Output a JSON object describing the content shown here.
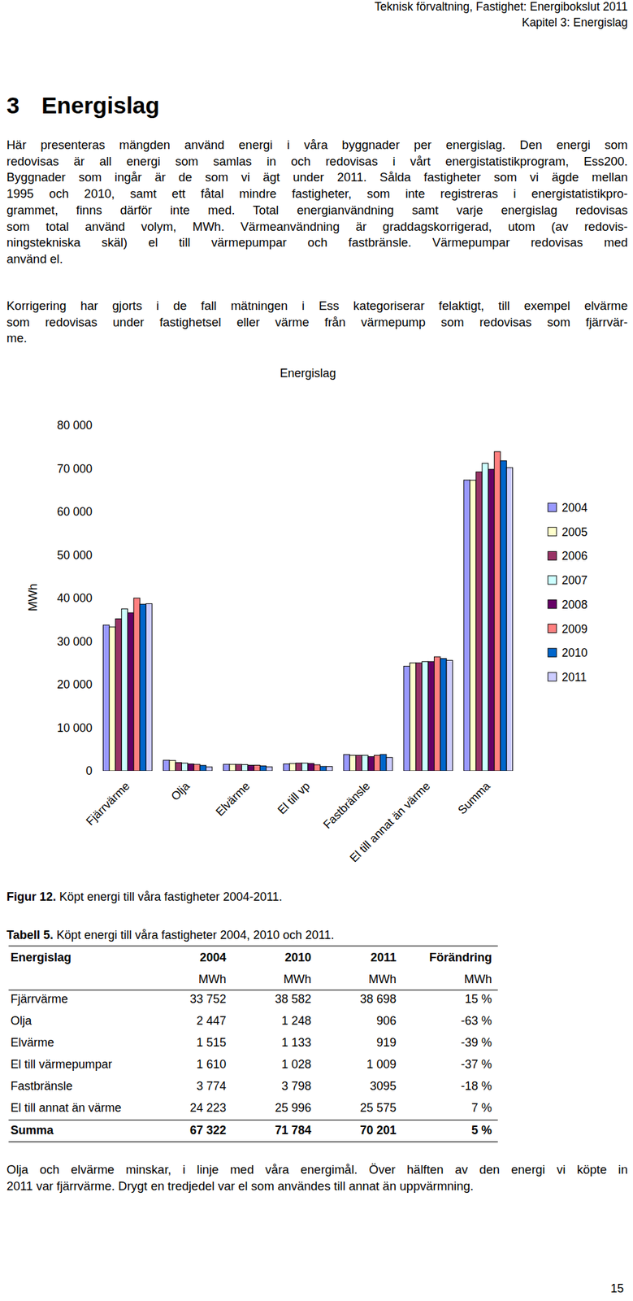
{
  "header": {
    "lines": [
      "Teknisk förvaltning, Fastighet: Energibokslut 2011",
      "Kapitel 3: Energislag"
    ]
  },
  "heading": {
    "number": "3",
    "title": "Energislag"
  },
  "paragraphs": [
    [
      "Här presenteras mängden använd energi i våra byggnader per energislag. Den energi som",
      "redovisas är all energi som samlas in och redovisas i vårt energistatistikprogram, Ess200.",
      "Byggnader som ingår är de som vi ägt under 2011. Sålda fastigheter som vi ägde mellan",
      "1995 och 2010, samt ett fåtal mindre fastigheter, som inte registreras i energistatistikpro-",
      "grammet, finns därför inte med. Total energianvändning samt varje energislag redovisas",
      "som total använd volym, MWh. Värmeanvändning är graddagskorrigerad, utom (av redovis-",
      "ningstekniska skäl) el till värmepumpar och fastbränsle. Värmepumpar redovisas med",
      "använd el."
    ],
    [
      "Korrigering har gjorts i de fall mätningen i Ess kategoriserar felaktigt, till exempel elvärme",
      "som redovisas under fastighetsel eller värme från värmepump som redovisas som fjärrvär-",
      "me."
    ]
  ],
  "chart_data": {
    "type": "bar",
    "title": "Energislag",
    "y_label": "MWh",
    "categories": [
      "Fjärrvärme",
      "Olja",
      "Elvärme",
      "El till vp",
      "Fastbränsle",
      "El till annat än värme",
      "Summa"
    ],
    "series": [
      {
        "name": "2004",
        "color": "#9999ff",
        "values": [
          33752,
          2447,
          1515,
          1610,
          3774,
          24223,
          67322
        ]
      },
      {
        "name": "2005",
        "color": "#ffffcc",
        "values": [
          33300,
          2400,
          1500,
          1700,
          3600,
          25000,
          67300
        ]
      },
      {
        "name": "2006",
        "color": "#993366",
        "values": [
          35200,
          1900,
          1500,
          1800,
          3600,
          25000,
          69200
        ]
      },
      {
        "name": "2007",
        "color": "#ccffff",
        "values": [
          37500,
          1800,
          1450,
          1800,
          3600,
          25300,
          71200
        ]
      },
      {
        "name": "2008",
        "color": "#660066",
        "values": [
          36600,
          1600,
          1300,
          1700,
          3300,
          25300,
          69800
        ]
      },
      {
        "name": "2009",
        "color": "#ff8080",
        "values": [
          40000,
          1500,
          1300,
          1400,
          3600,
          26400,
          73900
        ]
      },
      {
        "name": "2010",
        "color": "#0066cc",
        "values": [
          38582,
          1248,
          1133,
          1028,
          3798,
          25996,
          71784
        ]
      },
      {
        "name": "2011",
        "color": "#ccccff",
        "values": [
          38698,
          906,
          919,
          1009,
          3095,
          25575,
          70201
        ]
      }
    ],
    "ylim": [
      0,
      80000
    ],
    "yticks": [
      0,
      {
        "value": 10000,
        "label": "10 000"
      },
      {
        "value": 20000,
        "label": "20 000"
      },
      {
        "value": 30000,
        "label": "30 000"
      },
      {
        "value": 40000,
        "label": "40 000"
      },
      {
        "value": 50000,
        "label": "50 000"
      },
      {
        "value": 60000,
        "label": "60 000"
      },
      {
        "value": 70000,
        "label": "70 000"
      },
      {
        "value": 80000,
        "label": "80 000"
      }
    ],
    "grid": false,
    "legend": "right"
  },
  "figure_caption": {
    "label": "Figur 12.",
    "text": "Köpt energi till våra fastigheter 2004-2011."
  },
  "table": {
    "caption": {
      "label": "Tabell 5.",
      "text": "Köpt energi till våra fastigheter 2004, 2010 och 2011."
    },
    "header": [
      "Energislag",
      "2004",
      "2010",
      "2011",
      "Förändring"
    ],
    "units": [
      "MWh",
      "MWh",
      "MWh",
      "MWh"
    ],
    "rows": [
      [
        "Fjärrvärme",
        "33 752",
        "38 582",
        "38 698",
        "15 %"
      ],
      [
        "Olja",
        "2 447",
        "1 248",
        "906",
        "-63 %"
      ],
      [
        "Elvärme",
        "1 515",
        "1 133",
        "919",
        "-39 %"
      ],
      [
        "El till värmepumpar",
        "1 610",
        "1 028",
        "1 009",
        "-37 %"
      ],
      [
        "Fastbränsle",
        "3 774",
        "3 798",
        "3095",
        "-18 %"
      ],
      [
        "El till annat än värme",
        "24 223",
        "25 996",
        "25 575",
        "7 %"
      ]
    ],
    "total": [
      "Summa",
      "67 322",
      "71 784",
      "70 201",
      "5 %"
    ]
  },
  "closing_paragraph": [
    "Olja och elvärme minskar, i linje med våra energimål. Över hälften av den energi vi köpte in",
    "2011 var fjärrvärme. Drygt en tredjedel var el som användes till annat än uppvärmning."
  ],
  "page_number": "15"
}
